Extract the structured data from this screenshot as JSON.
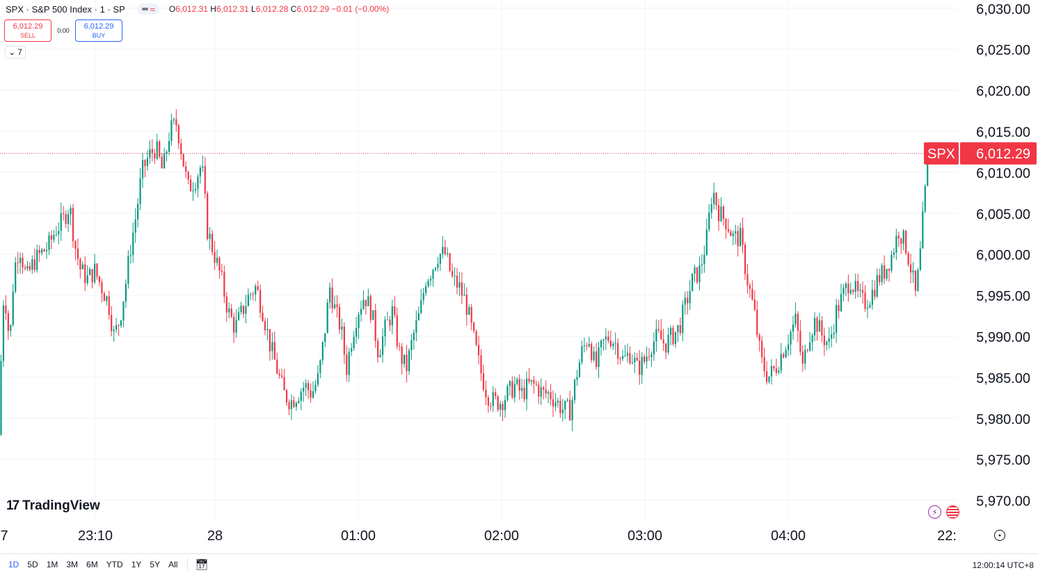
{
  "legend": {
    "symbol": "SPX · S&P 500 Index · 1 · SP",
    "o_label": "O",
    "o": "6,012.31",
    "h_label": "H",
    "h": "6,012.31",
    "l_label": "L",
    "l": "6,012.28",
    "c_label": "C",
    "c": "6,012.29",
    "change": "−0.01 (−0.00%)"
  },
  "trade": {
    "sell_price": "6,012.29",
    "sell_label": "SELL",
    "spread": "0.00",
    "buy_price": "6,012.29",
    "buy_label": "BUY"
  },
  "indicators_toggle": "7",
  "logo_text": "TradingView",
  "bottom": {
    "ranges": [
      "1D",
      "5D",
      "1M",
      "3M",
      "6M",
      "YTD",
      "1Y",
      "5Y",
      "All"
    ],
    "active_range": "1D",
    "clock": "12:00:14 UTC+8"
  },
  "colors": {
    "up": "#089981",
    "down": "#f23645",
    "grid": "#f0f3fa",
    "badge": "#f23645"
  },
  "icons": {
    "flash": "flash-icon",
    "flag": "us-flag-icon",
    "settings": "gear-icon",
    "calendar": "calendar-icon",
    "collapse": "chevron-down-icon"
  },
  "chart_data": {
    "type": "candlestick",
    "ylim": [
      5967.5,
      6031.0
    ],
    "y_ticks": [
      "6,030.00",
      "6,025.00",
      "6,020.00",
      "6,015.00",
      "6,010.00",
      "6,005.00",
      "6,000.00",
      "5,995.00",
      "5,990.00",
      "5,985.00",
      "5,980.00",
      "5,975.00",
      "5,970.00"
    ],
    "y_tick_values": [
      6030,
      6025,
      6020,
      6015,
      6010,
      6005,
      6000,
      5995,
      5990,
      5985,
      5980,
      5975,
      5970
    ],
    "x_ticks": [
      "7",
      "23:10",
      "28",
      "01:00",
      "02:00",
      "03:00",
      "04:00",
      "22:"
    ],
    "last_price": 6012.29,
    "last_price_label": "6,012.29",
    "badge_symbol": "SPX",
    "grid": true,
    "path_approx": [
      [
        0,
        5978
      ],
      [
        2,
        5990
      ],
      [
        6,
        5996
      ],
      [
        14,
        5989
      ],
      [
        20,
        5998
      ],
      [
        28,
        6001
      ],
      [
        38,
        5997
      ],
      [
        48,
        5999
      ],
      [
        58,
        6000
      ],
      [
        70,
        6001
      ],
      [
        80,
        6003
      ],
      [
        90,
        6004
      ],
      [
        100,
        6006
      ],
      [
        108,
        6001
      ],
      [
        116,
        5998
      ],
      [
        126,
        5997
      ],
      [
        136,
        5998
      ],
      [
        146,
        5996
      ],
      [
        156,
        5994
      ],
      [
        164,
        5990
      ],
      [
        172,
        5992
      ],
      [
        180,
        5996
      ],
      [
        188,
        6001
      ],
      [
        196,
        6005
      ],
      [
        204,
        6010
      ],
      [
        214,
        6012
      ],
      [
        224,
        6013
      ],
      [
        234,
        6010
      ],
      [
        244,
        6015
      ],
      [
        254,
        6016
      ],
      [
        262,
        6012
      ],
      [
        270,
        6008
      ],
      [
        280,
        6009
      ],
      [
        290,
        6011
      ],
      [
        298,
        6003
      ],
      [
        308,
        6000
      ],
      [
        318,
        5997
      ],
      [
        328,
        5993
      ],
      [
        338,
        5991
      ],
      [
        348,
        5993
      ],
      [
        358,
        5995
      ],
      [
        368,
        5996
      ],
      [
        378,
        5993
      ],
      [
        388,
        5989
      ],
      [
        398,
        5986
      ],
      [
        408,
        5983
      ],
      [
        418,
        5982
      ],
      [
        428,
        5983
      ],
      [
        438,
        5984
      ],
      [
        448,
        5983
      ],
      [
        458,
        5985
      ],
      [
        466,
        5990
      ],
      [
        474,
        5996
      ],
      [
        482,
        5993
      ],
      [
        490,
        5991
      ],
      [
        498,
        5986
      ],
      [
        506,
        5990
      ],
      [
        514,
        5993
      ],
      [
        524,
        5995
      ],
      [
        534,
        5993
      ],
      [
        544,
        5988
      ],
      [
        554,
        5991
      ],
      [
        564,
        5993
      ],
      [
        574,
        5988
      ],
      [
        584,
        5986
      ],
      [
        594,
        5990
      ],
      [
        604,
        5993
      ],
      [
        612,
        5997
      ],
      [
        620,
        5998
      ],
      [
        630,
        6000
      ],
      [
        640,
        6000
      ],
      [
        650,
        5997
      ],
      [
        660,
        5996
      ],
      [
        670,
        5994
      ],
      [
        680,
        5990
      ],
      [
        690,
        5986
      ],
      [
        700,
        5983
      ],
      [
        710,
        5982
      ],
      [
        720,
        5982
      ],
      [
        730,
        5983
      ],
      [
        740,
        5984
      ],
      [
        750,
        5983
      ],
      [
        760,
        5984
      ],
      [
        770,
        5984
      ],
      [
        780,
        5983
      ],
      [
        790,
        5983
      ],
      [
        800,
        5982
      ],
      [
        810,
        5981
      ],
      [
        820,
        5981
      ],
      [
        828,
        5985
      ],
      [
        836,
        5988
      ],
      [
        846,
        5990
      ],
      [
        856,
        5986
      ],
      [
        866,
        5989
      ],
      [
        876,
        5990
      ],
      [
        886,
        5989
      ],
      [
        896,
        5987
      ],
      [
        906,
        5988
      ],
      [
        916,
        5986
      ],
      [
        926,
        5987
      ],
      [
        936,
        5989
      ],
      [
        946,
        5990
      ],
      [
        956,
        5989
      ],
      [
        966,
        5990
      ],
      [
        976,
        5991
      ],
      [
        986,
        5994
      ],
      [
        996,
        5997
      ],
      [
        1006,
        5998
      ],
      [
        1016,
        6002
      ],
      [
        1024,
        6008
      ],
      [
        1034,
        6005
      ],
      [
        1044,
        6004
      ],
      [
        1054,
        6002
      ],
      [
        1064,
        6002
      ],
      [
        1074,
        5997
      ],
      [
        1084,
        5993
      ],
      [
        1094,
        5987
      ],
      [
        1104,
        5985
      ],
      [
        1114,
        5986
      ],
      [
        1124,
        5988
      ],
      [
        1134,
        5990
      ],
      [
        1144,
        5992
      ],
      [
        1154,
        5986
      ],
      [
        1162,
        5990
      ],
      [
        1172,
        5992
      ],
      [
        1182,
        5990
      ],
      [
        1192,
        5989
      ],
      [
        1202,
        5993
      ],
      [
        1212,
        5995
      ],
      [
        1222,
        5997
      ],
      [
        1232,
        5995
      ],
      [
        1242,
        5994
      ],
      [
        1252,
        5995
      ],
      [
        1262,
        5997
      ],
      [
        1272,
        5998
      ],
      [
        1282,
        6000
      ],
      [
        1292,
        6003
      ],
      [
        1302,
        6001
      ],
      [
        1310,
        5998
      ],
      [
        1316,
        5995
      ],
      [
        1322,
        5999
      ],
      [
        1328,
        6006
      ],
      [
        1334,
        6011
      ],
      [
        1336,
        6012.29
      ]
    ]
  }
}
